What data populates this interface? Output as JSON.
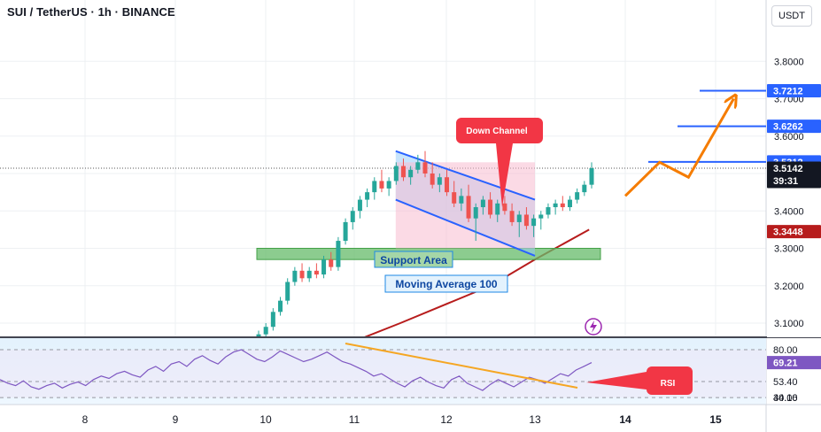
{
  "header": {
    "symbol_title": "SUI / TetherUS · 1h · BINANCE",
    "currency_button": "USDT"
  },
  "colors": {
    "up": "#26a69a",
    "down": "#ef5350",
    "channel_fill": "#90caf9",
    "channel_line": "#2962ff",
    "support_fill": "#66bb6a",
    "ma_line": "#b71c1c",
    "projection": "#f57c00",
    "rsi_line": "#7e57c2",
    "rsi_trend": "#f5a623",
    "callout": "#f23645",
    "level_line": "#2962ff"
  },
  "annotations": {
    "down_channel": "Down Channel",
    "support_area": "Support Area",
    "moving_average": "Moving Average 100",
    "rsi": "RSI"
  },
  "price_axis": {
    "ticks": [
      "3.8000",
      "3.7000",
      "3.6000",
      "3.4000",
      "3.3000",
      "3.2000",
      "3.1000"
    ],
    "tick_values": [
      3.8,
      3.7,
      3.6,
      3.4,
      3.3,
      3.2,
      3.1
    ],
    "labels": [
      {
        "text": "3.7212",
        "value": 3.7212,
        "color": "#2962ff"
      },
      {
        "text": "3.6262",
        "value": 3.6262,
        "color": "#2962ff"
      },
      {
        "text": "3.5312",
        "value": 3.5312,
        "color": "#2962ff"
      },
      {
        "text": "3.5142",
        "value": 3.5142,
        "color": "#131722",
        "sub": "39:31"
      },
      {
        "text": "3.3448",
        "value": 3.3448,
        "color": "#b71c1c"
      }
    ]
  },
  "rsi_axis": {
    "labels": [
      {
        "text": "80.00",
        "value": 80,
        "highlight": false
      },
      {
        "text": "69.21",
        "value": 69.21,
        "highlight": true
      },
      {
        "text": "53.40",
        "value": 53.4,
        "highlight": false
      },
      {
        "text": "40.00",
        "value": 40,
        "highlight": false
      },
      {
        "text": "34.16",
        "value": 34.16,
        "highlight": false
      }
    ]
  },
  "time_axis": {
    "labels": [
      "8",
      "9",
      "10",
      "11",
      "12",
      "13",
      "14",
      "15"
    ],
    "bold": [
      "14",
      "15"
    ]
  },
  "chart_data": {
    "type": "candlestick",
    "symbol": "SUI/USDT",
    "interval": "1h",
    "x_range": [
      "7.5",
      "15.5"
    ],
    "y_range": [
      3.02,
      3.86
    ],
    "last_price": 3.5142,
    "countdown": "39:31",
    "moving_average_100_value": 3.3448,
    "target_levels": [
      3.5312,
      3.6262,
      3.7212
    ],
    "support_area": [
      3.27,
      3.3
    ],
    "down_channel": {
      "upper": [
        [
          11.45,
          3.56
        ],
        [
          13.0,
          3.43
        ]
      ],
      "lower": [
        [
          11.45,
          3.43
        ],
        [
          13.0,
          3.28
        ]
      ]
    },
    "ma100": [
      [
        10.45,
        3.0
      ],
      [
        11.5,
        3.1
      ],
      [
        12.5,
        3.2
      ],
      [
        13.0,
        3.27
      ],
      [
        13.6,
        3.35
      ]
    ],
    "projection": [
      [
        14.0,
        3.44
      ],
      [
        14.38,
        3.53
      ],
      [
        14.7,
        3.49
      ],
      [
        15.2,
        3.7
      ]
    ],
    "candles_ohlc_approx": [
      [
        3.06,
        3.08,
        3.05,
        3.07
      ],
      [
        3.07,
        3.1,
        3.06,
        3.09
      ],
      [
        3.09,
        3.14,
        3.08,
        3.13
      ],
      [
        3.13,
        3.17,
        3.12,
        3.16
      ],
      [
        3.16,
        3.22,
        3.15,
        3.21
      ],
      [
        3.21,
        3.25,
        3.2,
        3.24
      ],
      [
        3.24,
        3.26,
        3.21,
        3.22
      ],
      [
        3.22,
        3.25,
        3.21,
        3.24
      ],
      [
        3.24,
        3.26,
        3.22,
        3.23
      ],
      [
        3.23,
        3.28,
        3.22,
        3.27
      ],
      [
        3.27,
        3.29,
        3.24,
        3.25
      ],
      [
        3.25,
        3.33,
        3.24,
        3.32
      ],
      [
        3.32,
        3.38,
        3.31,
        3.37
      ],
      [
        3.37,
        3.41,
        3.35,
        3.4
      ],
      [
        3.4,
        3.44,
        3.38,
        3.43
      ],
      [
        3.43,
        3.46,
        3.41,
        3.45
      ],
      [
        3.45,
        3.49,
        3.43,
        3.48
      ],
      [
        3.48,
        3.51,
        3.45,
        3.46
      ],
      [
        3.46,
        3.49,
        3.44,
        3.48
      ],
      [
        3.48,
        3.53,
        3.47,
        3.52
      ],
      [
        3.52,
        3.54,
        3.48,
        3.49
      ],
      [
        3.49,
        3.52,
        3.47,
        3.51
      ],
      [
        3.51,
        3.55,
        3.5,
        3.53
      ],
      [
        3.53,
        3.56,
        3.49,
        3.5
      ],
      [
        3.5,
        3.53,
        3.46,
        3.47
      ],
      [
        3.47,
        3.5,
        3.45,
        3.49
      ],
      [
        3.49,
        3.51,
        3.44,
        3.45
      ],
      [
        3.45,
        3.48,
        3.41,
        3.42
      ],
      [
        3.42,
        3.46,
        3.4,
        3.44
      ],
      [
        3.44,
        3.47,
        3.37,
        3.38
      ],
      [
        3.38,
        3.42,
        3.32,
        3.41
      ],
      [
        3.41,
        3.44,
        3.39,
        3.43
      ],
      [
        3.43,
        3.45,
        3.38,
        3.39
      ],
      [
        3.39,
        3.43,
        3.37,
        3.42
      ],
      [
        3.42,
        3.44,
        3.39,
        3.4
      ],
      [
        3.4,
        3.42,
        3.36,
        3.37
      ],
      [
        3.37,
        3.4,
        3.33,
        3.39
      ],
      [
        3.39,
        3.41,
        3.35,
        3.36
      ],
      [
        3.36,
        3.39,
        3.33,
        3.38
      ],
      [
        3.38,
        3.4,
        3.35,
        3.39
      ],
      [
        3.39,
        3.42,
        3.38,
        3.41
      ],
      [
        3.41,
        3.43,
        3.39,
        3.42
      ],
      [
        3.42,
        3.44,
        3.4,
        3.41
      ],
      [
        3.41,
        3.44,
        3.4,
        3.43
      ],
      [
        3.43,
        3.46,
        3.42,
        3.45
      ],
      [
        3.45,
        3.48,
        3.44,
        3.47
      ],
      [
        3.47,
        3.53,
        3.46,
        3.5142
      ]
    ],
    "rsi_range": [
      28,
      88
    ],
    "rsi_levels": [
      80,
      53.4,
      40
    ],
    "rsi_last": 69.21,
    "rsi_values": [
      55,
      52,
      50,
      54,
      49,
      47,
      50,
      52,
      48,
      51,
      53,
      50,
      55,
      58,
      56,
      60,
      62,
      59,
      57,
      63,
      66,
      62,
      68,
      70,
      66,
      72,
      75,
      71,
      68,
      74,
      78,
      80,
      76,
      72,
      70,
      74,
      79,
      76,
      73,
      70,
      72,
      75,
      78,
      74,
      70,
      68,
      65,
      62,
      58,
      60,
      56,
      52,
      49,
      54,
      57,
      53,
      50,
      48,
      55,
      58,
      52,
      49,
      46,
      51,
      55,
      52,
      49,
      53,
      57,
      55,
      52,
      56,
      60,
      58,
      63,
      66,
      69.21
    ]
  }
}
